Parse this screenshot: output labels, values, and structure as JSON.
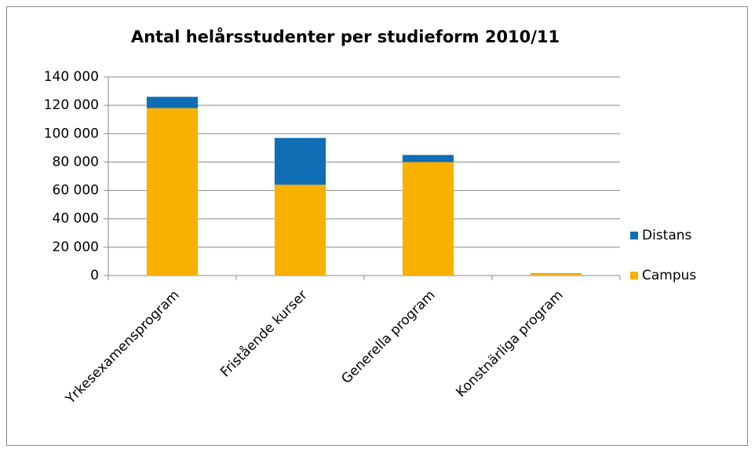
{
  "chart_data": {
    "type": "stacked_bar",
    "title": "Antal helårsstudenter per studieform 2010/11",
    "categories": [
      "Yrkesexamensprogram",
      "Fristående kurser",
      "Generella program",
      "Konstnärliga program"
    ],
    "series": [
      {
        "name": "Campus",
        "color": "#f9b100",
        "values": [
          118000,
          64000,
          80000,
          1500
        ]
      },
      {
        "name": "Distans",
        "color": "#0f6eb4",
        "values": [
          8000,
          33000,
          5000,
          200
        ]
      }
    ],
    "ylim": [
      0,
      140000
    ],
    "yticks": [
      0,
      {
        "value": 20000,
        "label": "20 000"
      },
      {
        "value": 40000,
        "label": "40 000"
      },
      {
        "value": 60000,
        "label": "60 000"
      },
      {
        "value": 80000,
        "label": "80 000"
      },
      {
        "value": 100000,
        "label": "100 000"
      },
      {
        "value": 120000,
        "label": "120 000"
      },
      {
        "value": 140000,
        "label": "140 000"
      }
    ],
    "grid": true,
    "legend": "right"
  }
}
